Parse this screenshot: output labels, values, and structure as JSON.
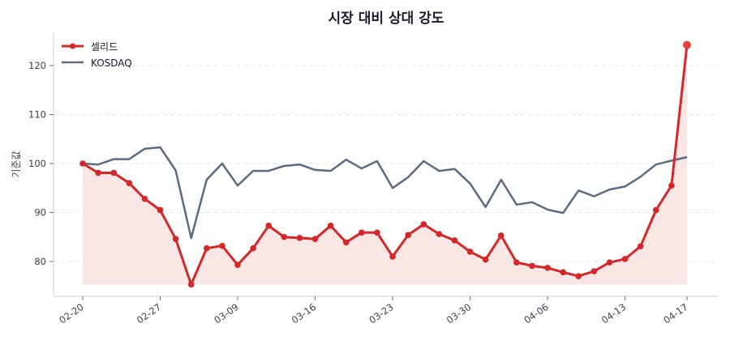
{
  "chart_data": {
    "type": "line",
    "title": "시장 대비 상대 강도",
    "xlabel": "",
    "ylabel": "기준값",
    "ylim": [
      73.4,
      126.6
    ],
    "yticks": [
      80,
      90,
      100,
      110,
      120
    ],
    "grid": {
      "y": true,
      "x": false,
      "style": "dashed"
    },
    "legend_position": "upper left",
    "x_tick_labels": [
      "02-20",
      "02-27",
      "03-09",
      "03-16",
      "03-23",
      "03-30",
      "04-06",
      "04-13",
      "04-17"
    ],
    "x_tick_indices": [
      0,
      5,
      10,
      15,
      20,
      25,
      30,
      35,
      39
    ],
    "baseline_fill_value": 75.3,
    "series": [
      {
        "name": "셀리드",
        "color": "#d62728",
        "fill_color": "#fbe6e6",
        "marker": "circle",
        "values": [
          100.0,
          98.1,
          98.1,
          96.0,
          92.8,
          90.5,
          84.6,
          75.3,
          82.7,
          83.2,
          79.3,
          82.7,
          87.3,
          85.0,
          84.8,
          84.6,
          87.3,
          83.9,
          85.9,
          85.9,
          81.0,
          85.4,
          87.6,
          85.6,
          84.3,
          82.0,
          80.4,
          85.3,
          79.8,
          79.1,
          78.7,
          77.8,
          77.0,
          78.0,
          79.8,
          80.5,
          83.1,
          90.5,
          95.5,
          124.2
        ]
      },
      {
        "name": "KOSDAQ",
        "color": "#5b6b82",
        "marker": "none",
        "values": [
          100.0,
          99.8,
          100.9,
          100.9,
          103.0,
          103.3,
          98.6,
          84.8,
          96.7,
          100.0,
          95.5,
          98.5,
          98.5,
          99.5,
          99.8,
          98.7,
          98.5,
          100.8,
          99.0,
          100.5,
          95.0,
          97.2,
          100.5,
          98.5,
          98.9,
          95.9,
          91.1,
          96.7,
          91.6,
          92.1,
          90.6,
          89.9,
          94.5,
          93.3,
          94.7,
          95.3,
          97.3,
          99.8,
          100.6,
          101.3
        ]
      }
    ]
  }
}
